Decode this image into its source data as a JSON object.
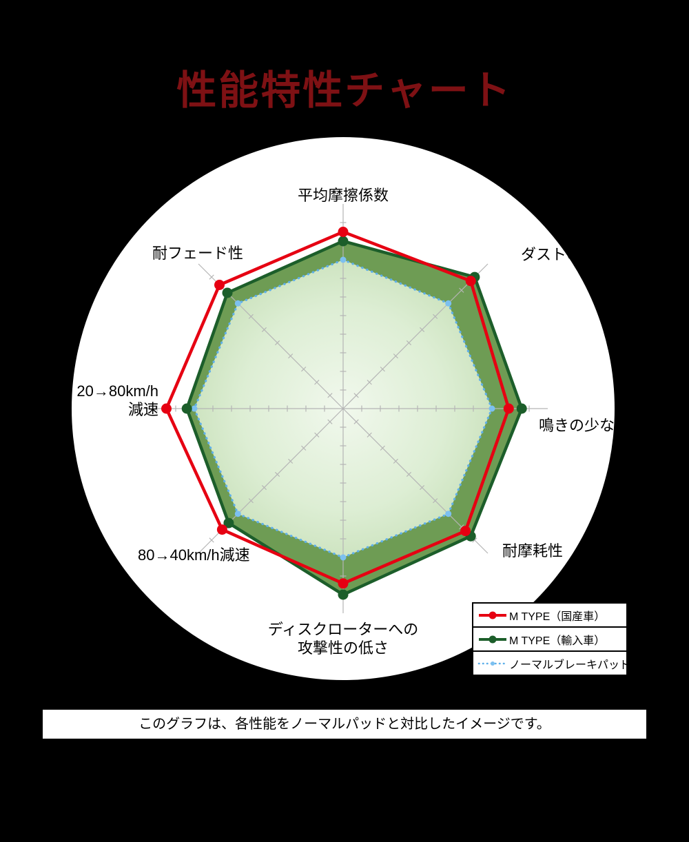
{
  "title": "性能特性チャート",
  "caption": "このグラフは、各性能をノーマルパッドと対比したイメージです。",
  "colors": {
    "background": "#000000",
    "panel": "#ffffff",
    "title_text": "#7e1114",
    "axis": "#b5b5b5",
    "red_series": "#e60012",
    "green_series": "#1c5e2a",
    "green_fill": "#6e9c54",
    "normal_series": "#5fb0ea"
  },
  "chart_data": {
    "type": "radar",
    "title": "性能特性チャート",
    "categories": [
      "平均摩擦係数",
      "ダストの少なさ",
      "鳴きの少なさ",
      "耐摩耗性",
      "ディスクローターへの\n攻撃性の低さ",
      "80→40km/h減速",
      "20→80km/h\n減速",
      "耐フェード性"
    ],
    "axis_range": {
      "min": 0,
      "max": 10,
      "tick_step": 1
    },
    "grid": "ticks",
    "legend_position": "bottom-right",
    "series": [
      {
        "name": "M TYPE（国産車）",
        "color": "#e60012",
        "line": "solid",
        "fill": "none",
        "values": [
          9.5,
          9.7,
          8.9,
          9.3,
          9.4,
          9.2,
          9.5,
          9.4
        ]
      },
      {
        "name": "M TYPE（輸入車）",
        "color": "#1c5e2a",
        "line": "solid",
        "fill": "#6e9c54",
        "values": [
          9.0,
          10.0,
          9.6,
          9.7,
          10.0,
          8.7,
          8.4,
          8.8
        ]
      },
      {
        "name": "ノーマルブレーキパッド",
        "color": "#5fb0ea",
        "line": "dotted",
        "fill": "gradient",
        "values": [
          8,
          8,
          8,
          8,
          8,
          8,
          8,
          8
        ]
      }
    ]
  }
}
